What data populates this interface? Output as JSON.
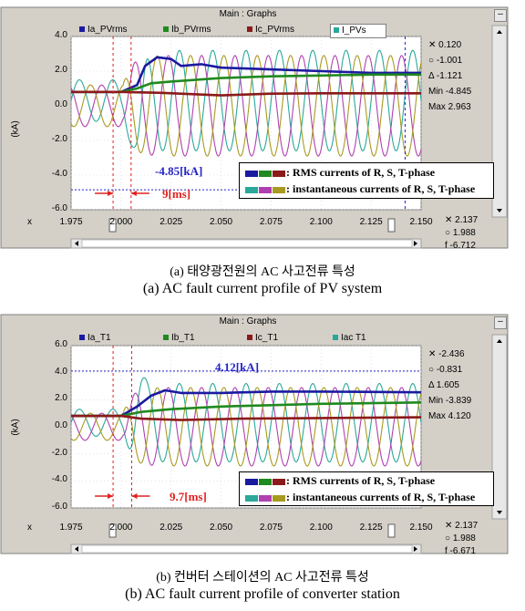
{
  "panels": [
    {
      "window_title": "Main : Graphs",
      "tabs": [
        {
          "label": "Ia_PVrms",
          "color": "#1a1aa0"
        },
        {
          "label": "Ib_PVrms",
          "color": "#1f8a1f"
        },
        {
          "label": "Ic_PVrms",
          "color": "#8b1a1a"
        },
        {
          "label": "I_PVs",
          "color": "#2aa89a"
        }
      ],
      "ylabel": "(kA)",
      "readouts": [
        "✕ 0.120",
        "○ -1.001",
        "Δ -1.121",
        "Min -4.845",
        "Max 2.963"
      ],
      "bottom_readouts": [
        "✕ 2.137",
        "○ 1.988",
        "f -6.712"
      ],
      "annotation_value": "-4.85[kA]",
      "annotation_time": "9[ms]",
      "legend_rms": ": RMS currents of R, S, T-phase",
      "legend_inst": ": instantaneous currents of R, S, T-phase",
      "x_axis_prefix": "x",
      "caption_ko": "(a) 태양광전원의 AC 사고전류 특성",
      "caption_en": "(a) AC fault current profile of PV system"
    },
    {
      "window_title": "Main : Graphs",
      "tabs": [
        {
          "label": "Ia_T1",
          "color": "#1a1aa0"
        },
        {
          "label": "Ib_T1",
          "color": "#1f8a1f"
        },
        {
          "label": "Ic_T1",
          "color": "#8b1a1a"
        },
        {
          "label": "Iac T1",
          "color": "#2aa89a"
        }
      ],
      "ylabel": "(kA)",
      "readouts": [
        "✕ -2.436",
        "○ -0.831",
        "Δ 1.605",
        "Min -3.839",
        "Max 4.120"
      ],
      "bottom_readouts": [
        "✕ 2.137",
        "○ 1.988",
        "f -6.671"
      ],
      "annotation_value": "4.12[kA]",
      "annotation_time": "9.7[ms]",
      "legend_rms": ": RMS currents of R, S, T-phase",
      "legend_inst": ": instantaneous currents of R, S, T-phase",
      "x_axis_prefix": "x",
      "caption_ko": "(b) 컨버터 스테이션의 AC 사고전류 특성",
      "caption_en": "(b) AC fault current profile of converter station"
    }
  ],
  "chart_data": [
    {
      "type": "line",
      "title": "Main : Graphs",
      "ylabel": "(kA)",
      "xlim": [
        1.975,
        2.15
      ],
      "ylim": [
        -6.0,
        4.0
      ],
      "xticks": [
        "1.975",
        "2.000",
        "2.025",
        "2.050",
        "2.075",
        "2.100",
        "2.125",
        "2.150"
      ],
      "yticks": [
        "4.0",
        "2.0",
        "0.0",
        "-2.0",
        "-4.0",
        "-6.0"
      ],
      "fault_time": 2.001,
      "inst_amplitude_pre": 1.2,
      "inst_peak": -4.85,
      "reference_line": -4.85,
      "cursor_lines": [
        1.996,
        2.005,
        2.142
      ],
      "series": [
        {
          "name": "Ia_PVrms",
          "color": "#1a1aa0",
          "x": [
            1.975,
            2.0,
            2.008,
            2.012,
            2.018,
            2.025,
            2.03,
            2.04,
            2.05,
            2.075,
            2.1,
            2.125,
            2.15
          ],
          "values": [
            0.8,
            0.8,
            1.2,
            2.3,
            2.8,
            2.7,
            2.3,
            2.4,
            2.2,
            2.1,
            2.0,
            1.9,
            1.9
          ]
        },
        {
          "name": "Ib_PVrms",
          "color": "#1f8a1f",
          "x": [
            1.975,
            2.0,
            2.008,
            2.015,
            2.025,
            2.05,
            2.075,
            2.1,
            2.125,
            2.15
          ],
          "values": [
            0.8,
            0.8,
            1.0,
            1.3,
            1.4,
            1.6,
            1.7,
            1.75,
            1.8,
            1.8
          ]
        },
        {
          "name": "Ic_PVrms",
          "color": "#8b1a1a",
          "x": [
            1.975,
            2.0,
            2.02,
            2.05,
            2.075,
            2.1,
            2.125,
            2.15
          ],
          "values": [
            0.8,
            0.8,
            0.75,
            0.6,
            0.7,
            0.72,
            0.72,
            0.72
          ]
        },
        {
          "name": "I_PVs",
          "color": "#2aa89a",
          "type": "sinusoid",
          "phase_deg": 0
        },
        {
          "name": "instantaneous S",
          "color": "#b040b0",
          "type": "sinusoid",
          "phase_deg": 120
        },
        {
          "name": "instantaneous T",
          "color": "#a89a20",
          "type": "sinusoid",
          "phase_deg": 240
        }
      ]
    },
    {
      "type": "line",
      "title": "Main : Graphs",
      "ylabel": "(kA)",
      "xlim": [
        1.975,
        2.15
      ],
      "ylim": [
        -6.0,
        6.0
      ],
      "xticks": [
        "1.975",
        "2.000",
        "2.025",
        "2.050",
        "2.075",
        "2.100",
        "2.125",
        "2.150"
      ],
      "yticks": [
        "6.0",
        "4.0",
        "2.0",
        "0.0",
        "-2.0",
        "-4.0",
        "-6.0"
      ],
      "fault_time": 2.001,
      "inst_amplitude_pre": 1.0,
      "inst_peak": 4.12,
      "reference_line": 4.12,
      "cursor_lines": [
        1.996,
        2.0053
      ],
      "series": [
        {
          "name": "Ia_T1",
          "color": "#1a1aa0",
          "x": [
            1.975,
            2.0,
            2.008,
            2.015,
            2.022,
            2.03,
            2.05,
            2.075,
            2.1,
            2.15
          ],
          "values": [
            0.8,
            0.8,
            1.5,
            2.3,
            2.7,
            2.5,
            2.5,
            2.6,
            2.6,
            2.55
          ]
        },
        {
          "name": "Ib_T1",
          "color": "#1f8a1f",
          "x": [
            1.975,
            2.0,
            2.01,
            2.025,
            2.05,
            2.075,
            2.1,
            2.15
          ],
          "values": [
            0.8,
            0.8,
            1.1,
            1.3,
            1.5,
            1.6,
            1.7,
            1.8
          ]
        },
        {
          "name": "Ic_T1",
          "color": "#8b1a1a",
          "x": [
            1.975,
            2.0,
            2.01,
            2.03,
            2.06,
            2.1,
            2.15
          ],
          "values": [
            0.8,
            0.8,
            0.6,
            0.5,
            0.6,
            0.65,
            0.7
          ]
        },
        {
          "name": "Iac T1",
          "color": "#2aa89a",
          "type": "sinusoid",
          "phase_deg": 0
        },
        {
          "name": "instantaneous S",
          "color": "#b040b0",
          "type": "sinusoid",
          "phase_deg": 120
        },
        {
          "name": "instantaneous T",
          "color": "#a89a20",
          "type": "sinusoid",
          "phase_deg": 240
        }
      ]
    }
  ]
}
